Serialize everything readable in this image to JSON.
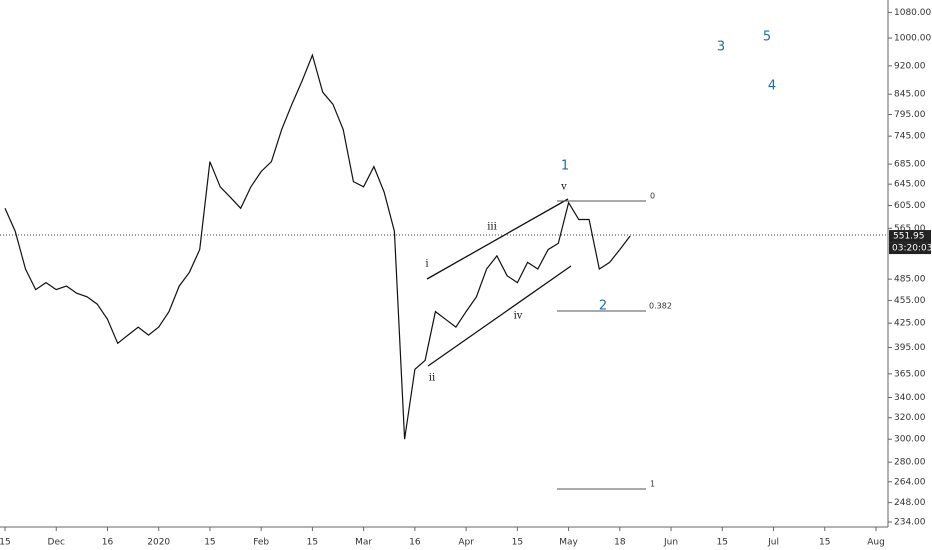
{
  "chart_data": {
    "type": "line",
    "log": true,
    "color": "#111111",
    "categories": [
      "15",
      null,
      null,
      null,
      null,
      "Dec",
      null,
      null,
      null,
      null,
      "16",
      null,
      null,
      null,
      null,
      "2020",
      null,
      null,
      null,
      null,
      "15",
      null,
      null,
      null,
      null,
      "Feb",
      null,
      null,
      null,
      null,
      "15",
      null,
      null,
      null,
      null,
      "Mar",
      null,
      null,
      null,
      null,
      "16",
      null,
      null,
      null,
      null,
      "Apr",
      null,
      null,
      null,
      null,
      "15",
      null,
      null,
      null,
      null,
      "May",
      null,
      null,
      null,
      null,
      "18",
      null,
      null,
      null,
      null,
      "Jun",
      null,
      null,
      null,
      null,
      "15",
      null,
      null,
      null,
      null,
      "Jul",
      null,
      null,
      null,
      null,
      "15",
      null,
      null,
      null,
      null,
      "Aug"
    ],
    "values": [
      600,
      560,
      500,
      470,
      480,
      470,
      475,
      465,
      460,
      450,
      430,
      400,
      410,
      420,
      410,
      420,
      440,
      475,
      495,
      530,
      690,
      640,
      620,
      600,
      640,
      670,
      690,
      760,
      820,
      880,
      950,
      850,
      820,
      760,
      650,
      640,
      680,
      630,
      560,
      300,
      370,
      380,
      440,
      430,
      420,
      440,
      460,
      500,
      520,
      490,
      480,
      510,
      500,
      530,
      540,
      610,
      580,
      580,
      500,
      510,
      530,
      552,
      null,
      null,
      null,
      null,
      null,
      null,
      null,
      null,
      null,
      null,
      null,
      null,
      null,
      null,
      null,
      null,
      null,
      null,
      null,
      null,
      null,
      null,
      null,
      null
    ],
    "ylim": [
      230.5,
      1121
    ],
    "yticks": [
      {
        "value": 1080,
        "label": "1080.00"
      },
      {
        "value": 1000,
        "label": "1000.00"
      },
      {
        "value": 920,
        "label": "920.00"
      },
      {
        "value": 845,
        "label": "845.00"
      },
      {
        "value": 795,
        "label": "795.00"
      },
      {
        "value": 745,
        "label": "745.00"
      },
      {
        "value": 685,
        "label": "685.00"
      },
      {
        "value": 645,
        "label": "645.00"
      },
      {
        "value": 605,
        "label": "605.00"
      },
      {
        "value": 565,
        "label": "565.00"
      },
      {
        "value": 485,
        "label": "485.00"
      },
      {
        "value": 455,
        "label": "455.00"
      },
      {
        "value": 425,
        "label": "425.00"
      },
      {
        "value": 395,
        "label": "395.00"
      },
      {
        "value": 365,
        "label": "365.00"
      },
      {
        "value": 340,
        "label": "340.00"
      },
      {
        "value": 320,
        "label": "320.00"
      },
      {
        "value": 300,
        "label": "300.00"
      },
      {
        "value": 280,
        "label": "280.00"
      },
      {
        "value": 264,
        "label": "264.00"
      },
      {
        "value": 248,
        "label": "248.00"
      },
      {
        "value": 234,
        "label": "234.00"
      }
    ],
    "last_price": {
      "value": 551.95,
      "label": "551.95"
    },
    "countdown": "03:20:03",
    "annotations": {
      "waves": [
        "1",
        "2",
        "3",
        "4",
        "5"
      ],
      "subwaves": [
        "i",
        "ii",
        "iii",
        "iv",
        "v"
      ],
      "fib": [
        "0",
        "0.382",
        "1"
      ]
    }
  }
}
